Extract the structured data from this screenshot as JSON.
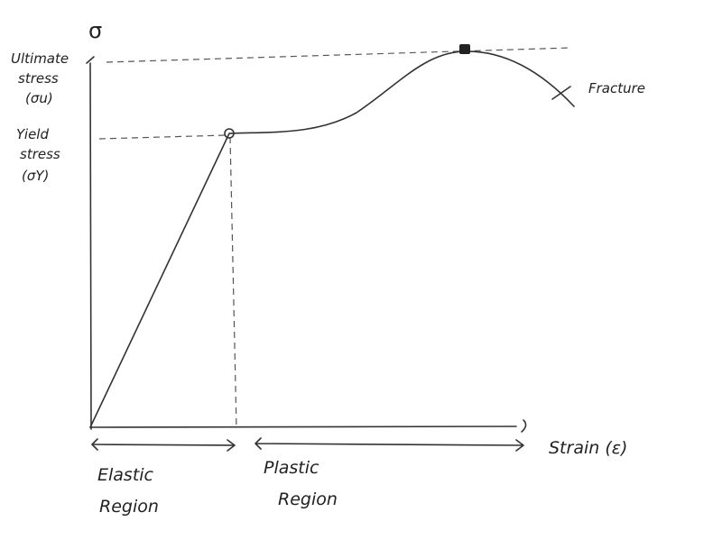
{
  "diagram": {
    "y_axis_symbol": "σ",
    "ultimate_stress": [
      "Ultimate",
      "stress",
      "(σu)"
    ],
    "yield_stress": [
      "Yield",
      "stress",
      "(σY)"
    ],
    "fracture": "Fracture",
    "x_axis_label": "Strain (ε)",
    "elastic_region": [
      "Elastic",
      "Region"
    ],
    "plastic_region": [
      "Plastic",
      "Region"
    ]
  }
}
